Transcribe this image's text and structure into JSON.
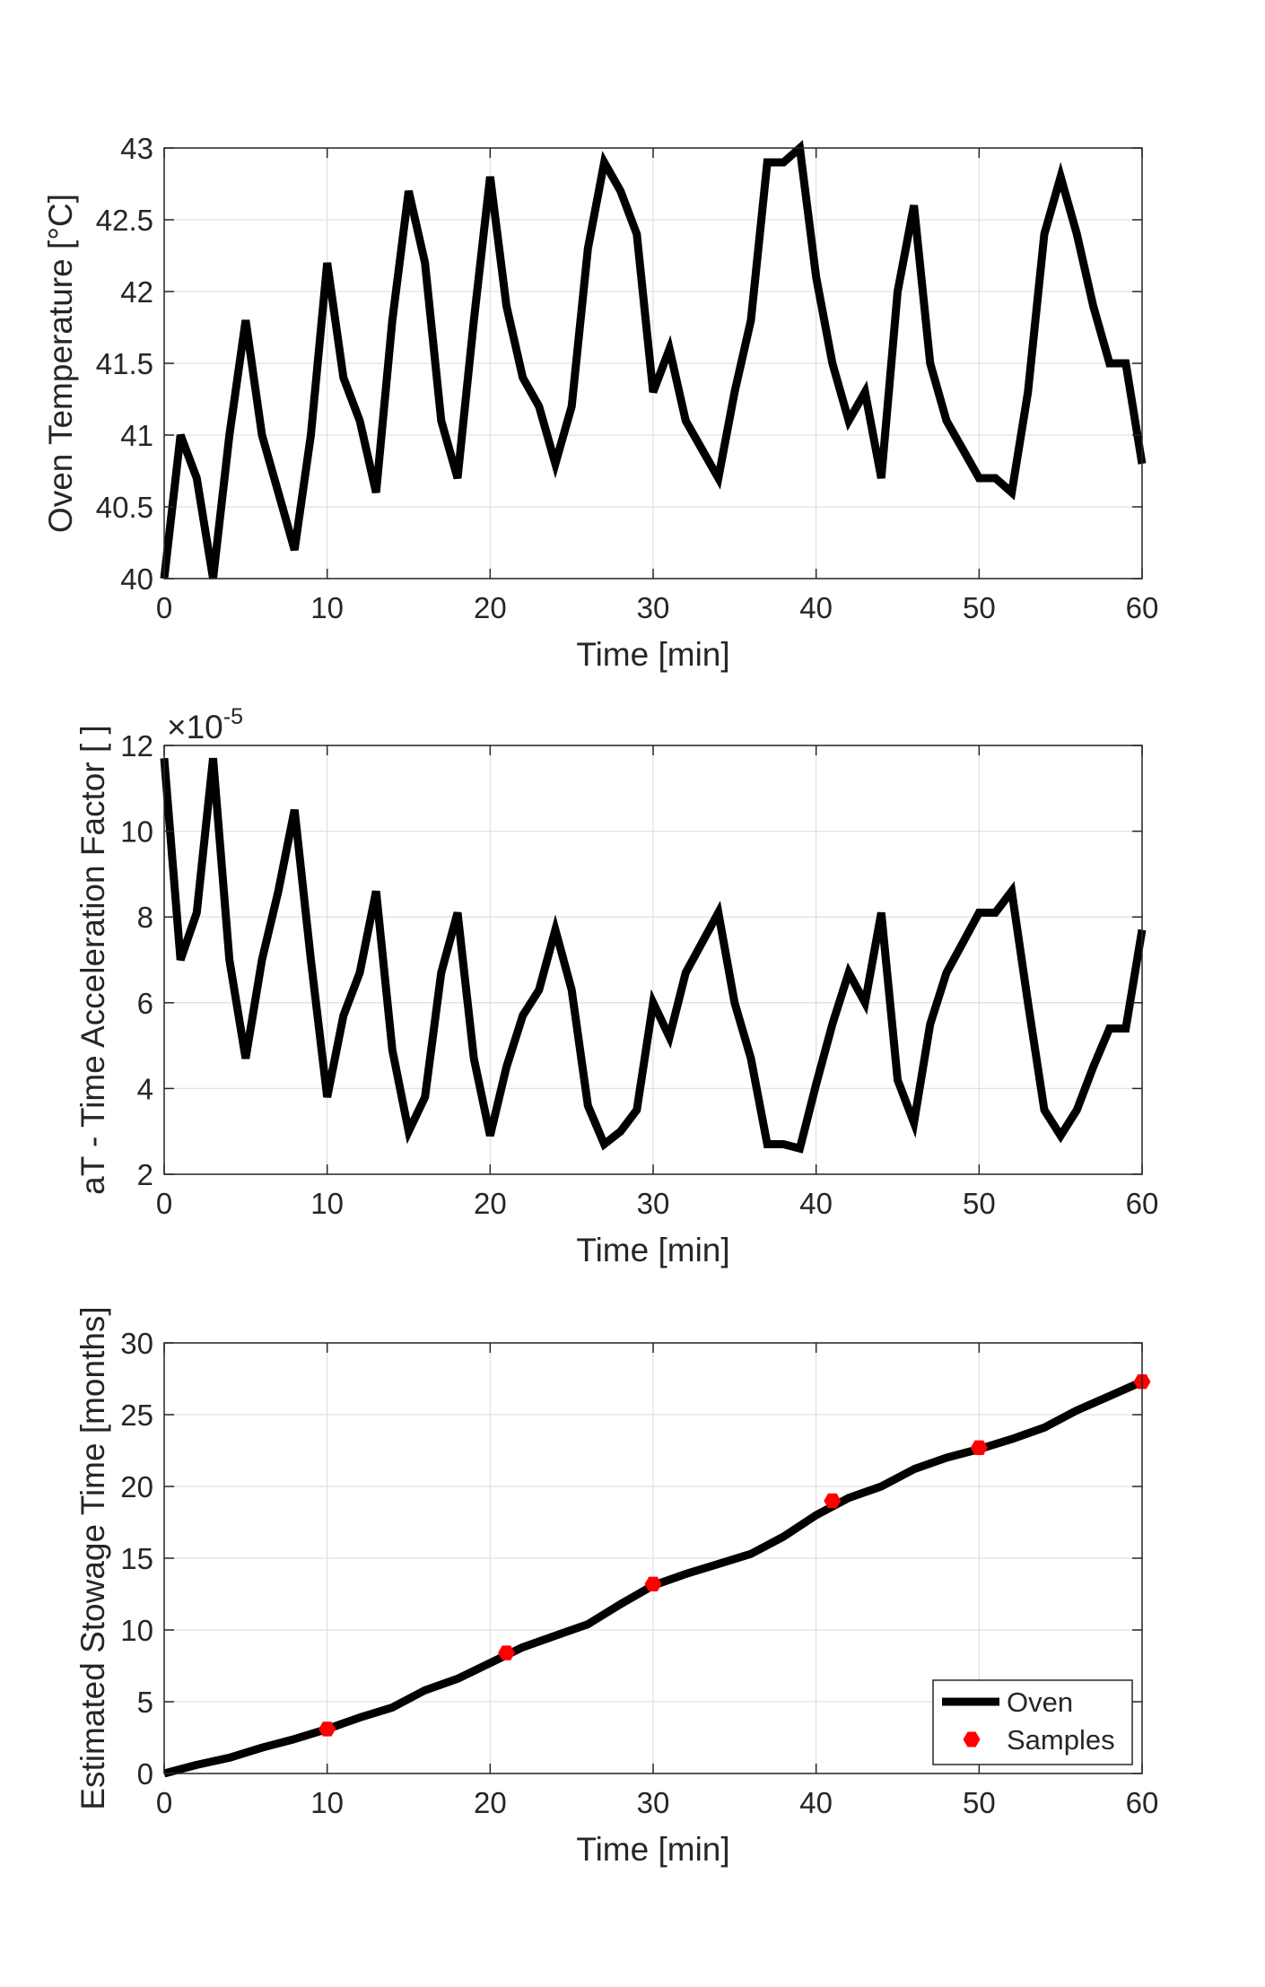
{
  "chart_data": [
    {
      "type": "line",
      "title": "",
      "xlabel": "Time [min]",
      "ylabel": "Oven Temperature [°C]",
      "xlim": [
        0,
        60
      ],
      "ylim": [
        40,
        43
      ],
      "xticks": [
        0,
        10,
        20,
        30,
        40,
        50,
        60
      ],
      "xtick_labels": [
        "0",
        "10",
        "20",
        "30",
        "40",
        "50",
        "60"
      ],
      "yticks": [
        40,
        40.5,
        41,
        41.5,
        42,
        42.5,
        43
      ],
      "ytick_labels": [
        "40",
        "40.5",
        "41",
        "41.5",
        "42",
        "42.5",
        "43"
      ],
      "grid": true,
      "line_color": "#000000",
      "series": [
        {
          "name": "Oven Temperature",
          "x": [
            0,
            1,
            2,
            3,
            4,
            5,
            6,
            7,
            8,
            9,
            10,
            11,
            12,
            13,
            14,
            15,
            16,
            17,
            18,
            19,
            20,
            21,
            22,
            23,
            24,
            25,
            26,
            27,
            28,
            29,
            30,
            31,
            32,
            33,
            34,
            35,
            36,
            37,
            38,
            39,
            40,
            41,
            42,
            43,
            44,
            45,
            46,
            47,
            48,
            49,
            50,
            51,
            52,
            53,
            54,
            55,
            56,
            57,
            58,
            59,
            60
          ],
          "values": [
            40.0,
            41.0,
            40.7,
            40.0,
            41.0,
            41.8,
            41.0,
            40.6,
            40.2,
            41.0,
            42.2,
            41.4,
            41.1,
            40.6,
            41.8,
            42.7,
            42.2,
            41.1,
            40.7,
            41.8,
            42.8,
            41.9,
            41.4,
            41.2,
            40.8,
            41.2,
            42.3,
            42.9,
            42.7,
            42.4,
            41.3,
            41.6,
            41.1,
            40.9,
            40.7,
            41.3,
            41.8,
            42.9,
            42.9,
            43.0,
            42.1,
            41.5,
            41.1,
            41.3,
            40.7,
            42.0,
            42.6,
            41.5,
            41.1,
            40.9,
            40.7,
            40.7,
            40.6,
            41.3,
            42.4,
            42.8,
            42.4,
            41.9,
            41.5,
            41.5,
            40.8
          ]
        }
      ]
    },
    {
      "type": "line",
      "title": "",
      "xlabel": "Time [min]",
      "ylabel": "aT - Time Acceleration Factor [ ]",
      "exponent_base": "×10",
      "exponent_power": "-5",
      "xlim": [
        0,
        60
      ],
      "ylim": [
        2,
        12
      ],
      "xticks": [
        0,
        10,
        20,
        30,
        40,
        50,
        60
      ],
      "xtick_labels": [
        "0",
        "10",
        "20",
        "30",
        "40",
        "50",
        "60"
      ],
      "yticks": [
        2,
        4,
        6,
        8,
        10,
        12
      ],
      "ytick_labels": [
        "2",
        "4",
        "6",
        "8",
        "10",
        "12"
      ],
      "grid": true,
      "line_color": "#000000",
      "series": [
        {
          "name": "aT",
          "x": [
            0,
            1,
            2,
            3,
            4,
            5,
            6,
            7,
            8,
            9,
            10,
            11,
            12,
            13,
            14,
            15,
            16,
            17,
            18,
            19,
            20,
            21,
            22,
            23,
            24,
            25,
            26,
            27,
            28,
            29,
            30,
            31,
            32,
            33,
            34,
            35,
            36,
            37,
            38,
            39,
            40,
            41,
            42,
            43,
            44,
            45,
            46,
            47,
            48,
            49,
            50,
            51,
            52,
            53,
            54,
            55,
            56,
            57,
            58,
            59,
            60
          ],
          "values": [
            11.7,
            7.0,
            8.1,
            11.7,
            7.0,
            4.7,
            7.0,
            8.6,
            10.5,
            7.0,
            3.8,
            5.7,
            6.7,
            8.6,
            4.9,
            3.0,
            3.8,
            6.7,
            8.1,
            4.7,
            2.9,
            4.5,
            5.7,
            6.3,
            7.7,
            6.3,
            3.6,
            2.7,
            3.0,
            3.5,
            6.0,
            5.2,
            6.7,
            7.4,
            8.1,
            6.0,
            4.7,
            2.7,
            2.7,
            2.6,
            4.1,
            5.5,
            6.7,
            6.0,
            8.1,
            4.2,
            3.2,
            5.5,
            6.7,
            7.4,
            8.1,
            8.1,
            8.6,
            6.0,
            3.5,
            2.9,
            3.5,
            4.5,
            5.4,
            5.4,
            7.7
          ]
        }
      ]
    },
    {
      "type": "line",
      "title": "",
      "xlabel": "Time [min]",
      "ylabel": "Estimated Stowage Time [months]",
      "xlim": [
        0,
        60
      ],
      "ylim": [
        0,
        30
      ],
      "xticks": [
        0,
        10,
        20,
        30,
        40,
        50,
        60
      ],
      "xtick_labels": [
        "0",
        "10",
        "20",
        "30",
        "40",
        "50",
        "60"
      ],
      "yticks": [
        0,
        5,
        10,
        15,
        20,
        25,
        30
      ],
      "ytick_labels": [
        "0",
        "5",
        "10",
        "15",
        "20",
        "25",
        "30"
      ],
      "grid": true,
      "legend_location": "bottom-right",
      "series": [
        {
          "name": "Oven",
          "style": "line",
          "color": "#000000",
          "x": [
            0,
            2,
            4,
            6,
            8,
            10,
            12,
            14,
            16,
            18,
            20,
            22,
            24,
            26,
            28,
            30,
            32,
            34,
            36,
            38,
            40,
            42,
            44,
            46,
            48,
            50,
            52,
            54,
            56,
            58,
            60
          ],
          "values": [
            0,
            0.6,
            1.1,
            1.8,
            2.4,
            3.1,
            3.9,
            4.6,
            5.8,
            6.6,
            7.7,
            8.8,
            9.6,
            10.4,
            11.8,
            13.1,
            13.9,
            14.6,
            15.3,
            16.5,
            18.0,
            19.2,
            20.0,
            21.2,
            22.0,
            22.6,
            23.3,
            24.1,
            25.3,
            26.3,
            27.3
          ]
        },
        {
          "name": "Samples",
          "style": "markers",
          "color": "#ff0000",
          "x": [
            10,
            21,
            30,
            41,
            50,
            60
          ],
          "values": [
            3.1,
            8.4,
            13.2,
            19.0,
            22.7,
            27.3
          ]
        }
      ]
    }
  ]
}
